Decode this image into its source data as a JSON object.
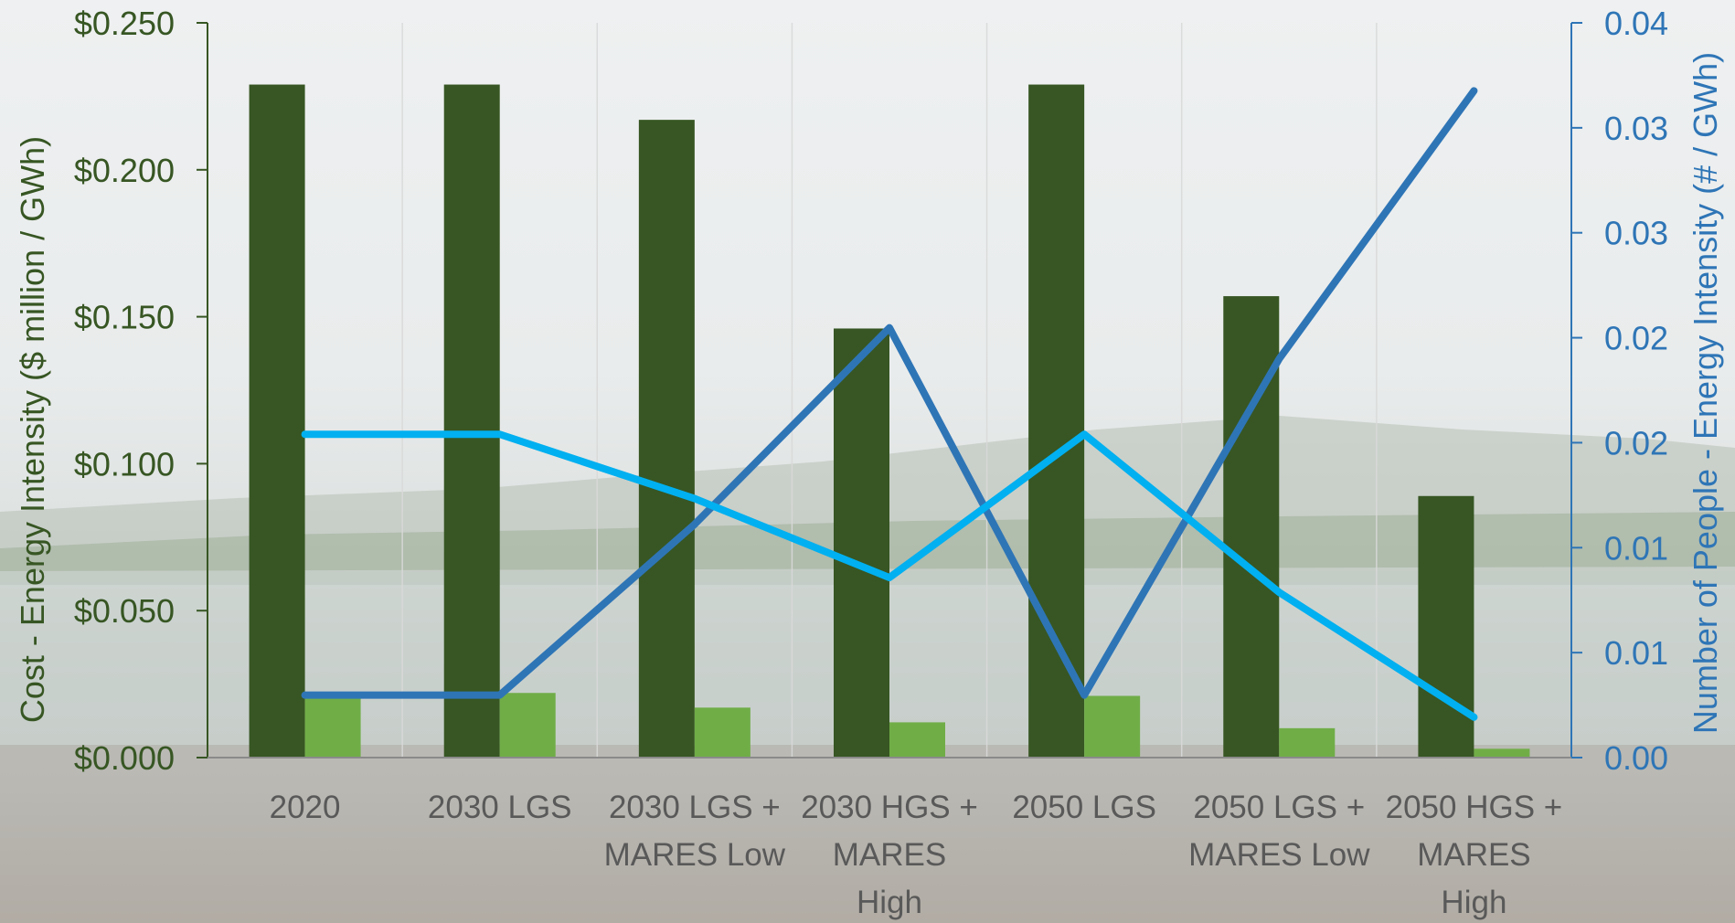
{
  "chart_data": {
    "type": "bar",
    "categories": [
      [
        "2020"
      ],
      [
        "2030 LGS"
      ],
      [
        "2030 LGS +",
        "MARES Low"
      ],
      [
        "2030 HGS +",
        "MARES",
        "High"
      ],
      [
        "2050 LGS"
      ],
      [
        "2050 LGS +",
        "MARES Low"
      ],
      [
        "2050 HGS +",
        "MARES",
        "High"
      ]
    ],
    "bar_series": [
      {
        "values": [
          0.229,
          0.229,
          0.217,
          0.146,
          0.229,
          0.157,
          0.089
        ],
        "color": "#375623"
      },
      {
        "values": [
          0.022,
          0.022,
          0.017,
          0.012,
          0.021,
          0.01,
          0.003
        ],
        "color": "#70ad47"
      }
    ],
    "line_series": [
      {
        "values": [
          0.0034,
          0.0034,
          0.0127,
          0.0234,
          0.0034,
          0.0217,
          0.0363
        ],
        "color": "#2e75b6"
      },
      {
        "values": [
          0.0176,
          0.0176,
          0.0141,
          0.0098,
          0.0176,
          0.009,
          0.0022
        ],
        "color": "#00b0f0"
      }
    ],
    "ylabel": "Cost - Energy Intensity ($ million / GWh)",
    "ylabel_right": "Number of People - Energy Intensity (# / GWh)",
    "ylim": [
      0,
      0.25
    ],
    "ylim_right": [
      0,
      0.04
    ],
    "yticks": [
      "$0.000",
      "$0.050",
      "$0.100",
      "$0.150",
      "$0.200",
      "$0.250"
    ],
    "yticks_right": [
      "0.00",
      "0.01",
      "0.01",
      "0.02",
      "0.02",
      "0.03",
      "0.03",
      "0.04"
    ],
    "grid": "vertical",
    "colors": {
      "left_axis": "#375623",
      "right_axis": "#2e75b6",
      "x_labels": "#595959"
    }
  }
}
